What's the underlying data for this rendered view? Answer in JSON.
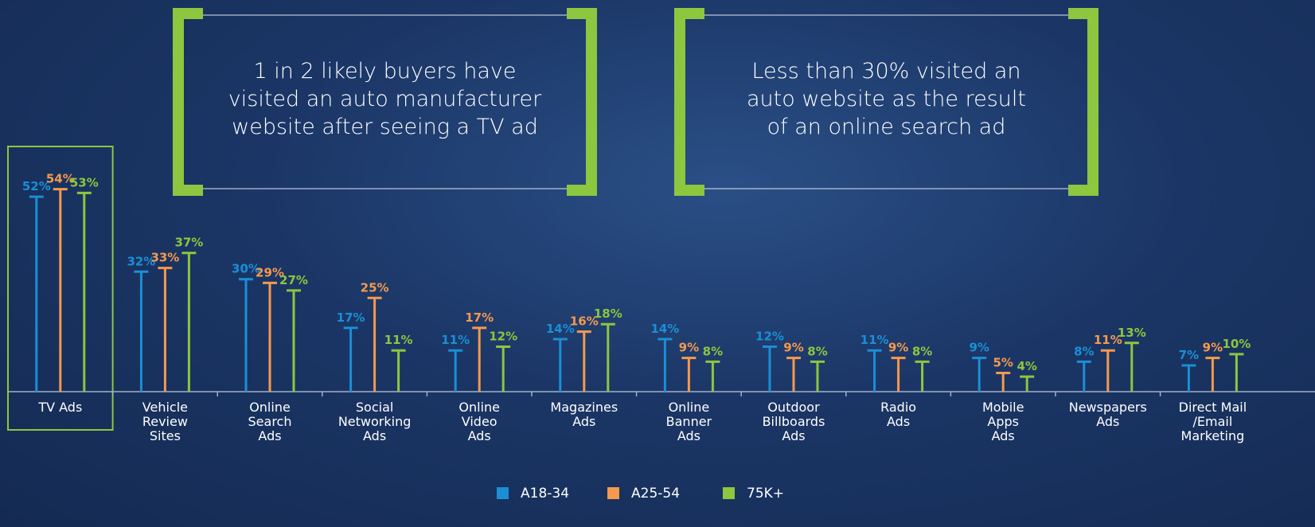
{
  "chart_data": {
    "type": "bar",
    "annotations": [
      "1 in 2 likely buyers have\nvisited an auto manufacturer\nwebsite after seeing a TV ad",
      "Less than 30% visited an\nauto website as the result\nof an online search ad"
    ],
    "categories": [
      "TV Ads",
      "Vehicle\nReview\nSites",
      "Online\nSearch\nAds",
      "Social\nNetworking\nAds",
      "Online\nVideo\nAds",
      "Magazines\nAds",
      "Online\nBanner\nAds",
      "Outdoor\nBillboards\nAds",
      "Radio\nAds",
      "Mobile\nApps\nAds",
      "Newspapers\nAds",
      "Direct Mail\n/Email\nMarketing"
    ],
    "ylim": [
      0,
      100
    ],
    "series": [
      {
        "name": "A18-34",
        "color": "#1a8fd6",
        "values": [
          52,
          32,
          30,
          17,
          11,
          14,
          14,
          12,
          11,
          9,
          8,
          7
        ],
        "value_labels": [
          "52%",
          "32%",
          "30%",
          "17%",
          "11%",
          "14%",
          "14%",
          "12%",
          "11%",
          "9%",
          "8%",
          "7%"
        ]
      },
      {
        "name": "A25-54",
        "color": "#f5994e",
        "values": [
          54,
          33,
          29,
          25,
          17,
          16,
          9,
          9,
          9,
          5,
          11,
          9
        ],
        "value_labels": [
          "54%",
          "33%",
          "29%",
          "25%",
          "17%",
          "16%",
          "9%",
          "9%",
          "9%",
          "5%",
          "11%",
          "9%"
        ]
      },
      {
        "name": "75K+",
        "color": "#8dc63f",
        "values": [
          53,
          37,
          27,
          11,
          12,
          18,
          8,
          8,
          8,
          4,
          13,
          10
        ],
        "value_labels": [
          "53%",
          "37%",
          "27%",
          "11%",
          "12%",
          "18%",
          "8%",
          "8%",
          "8%",
          "4%",
          "13%",
          "10%"
        ]
      }
    ]
  }
}
